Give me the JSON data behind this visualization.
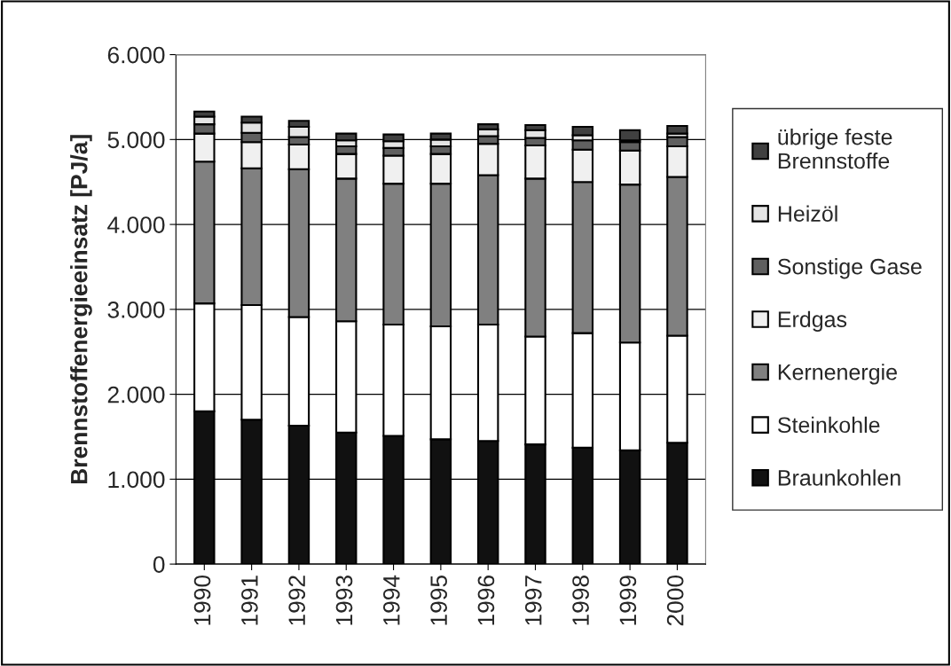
{
  "chart_data": {
    "type": "bar",
    "stacked": true,
    "ylabel": "Brennstoffenergieeinsatz [PJ/a]",
    "categories": [
      "1990",
      "1991",
      "1992",
      "1993",
      "1994",
      "1995",
      "1996",
      "1997",
      "1998",
      "1999",
      "2000"
    ],
    "series": [
      {
        "name": "Braunkohlen",
        "color": "#111111",
        "values": [
          1800,
          1700,
          1630,
          1550,
          1510,
          1470,
          1450,
          1410,
          1370,
          1340,
          1430
        ]
      },
      {
        "name": "Steinkohle",
        "color": "#ffffff",
        "values": [
          1270,
          1350,
          1280,
          1310,
          1310,
          1330,
          1370,
          1270,
          1350,
          1270,
          1260
        ]
      },
      {
        "name": "Kernenergie",
        "color": "#808080",
        "values": [
          1670,
          1610,
          1740,
          1680,
          1660,
          1680,
          1760,
          1860,
          1780,
          1860,
          1870
        ]
      },
      {
        "name": "Erdgas",
        "color": "#f0f0f0",
        "values": [
          330,
          310,
          290,
          290,
          330,
          350,
          370,
          390,
          380,
          400,
          360
        ]
      },
      {
        "name": "Sonstige Gase",
        "color": "#606060",
        "values": [
          110,
          110,
          90,
          90,
          90,
          90,
          90,
          90,
          110,
          100,
          110
        ]
      },
      {
        "name": "Heizöl",
        "color": "#e4e4e4",
        "values": [
          90,
          120,
          120,
          70,
          80,
          80,
          80,
          90,
          60,
          20,
          40
        ]
      },
      {
        "name": "übrige feste Brennstoffe",
        "color": "#404040",
        "values": [
          60,
          70,
          70,
          80,
          80,
          70,
          60,
          60,
          100,
          120,
          90
        ]
      }
    ],
    "ylim": [
      0,
      6000
    ],
    "yticks": [
      0,
      {
        "value": 1000,
        "label": "1.000"
      },
      {
        "value": 2000,
        "label": "2.000"
      },
      {
        "value": 3000,
        "label": "3.000"
      },
      {
        "value": 4000,
        "label": "4.000"
      },
      {
        "value": 5000,
        "label": "5.000"
      },
      {
        "value": 6000,
        "label": "6.000"
      }
    ],
    "grid": "y",
    "legend": "right"
  }
}
